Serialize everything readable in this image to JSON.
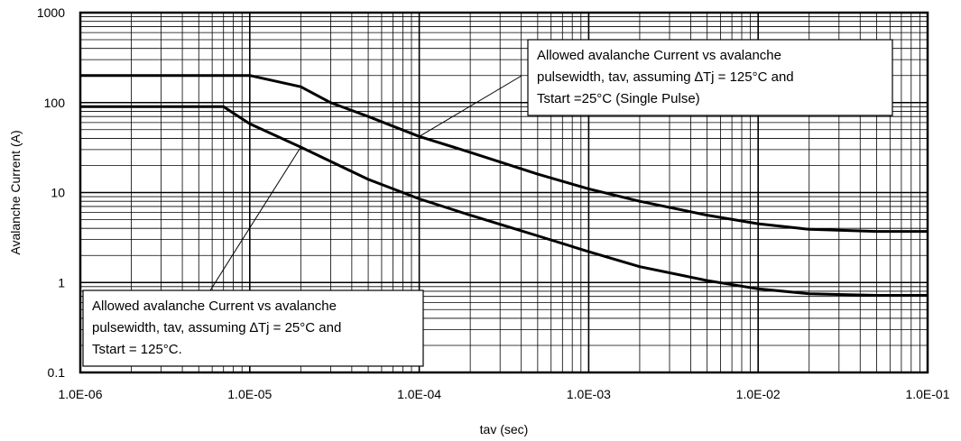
{
  "chart_data": {
    "type": "line",
    "title": "",
    "xlabel": "tav (sec)",
    "ylabel": "Avalanche Current (A)",
    "x_scale": "log",
    "y_scale": "log",
    "xlim": [
      1e-06,
      0.1
    ],
    "ylim": [
      0.1,
      1000
    ],
    "grid": true,
    "x_ticks": [
      "1.0E-06",
      "1.0E-05",
      "1.0E-04",
      "1.0E-03",
      "1.0E-02",
      "1.0E-01"
    ],
    "y_ticks": [
      "0.1",
      "1",
      "10",
      "100",
      "1000"
    ],
    "series": [
      {
        "x": [
          1e-06,
          1e-05,
          2e-05,
          3e-05,
          5e-05,
          0.0001,
          0.0002,
          0.0005,
          0.001,
          0.002,
          0.005,
          0.01,
          0.02,
          0.05,
          0.1
        ],
        "y": [
          200,
          200,
          150,
          100,
          70,
          42,
          28,
          16,
          11,
          8,
          5.6,
          4.5,
          3.9,
          3.7,
          3.7
        ]
      },
      {
        "x": [
          1e-06,
          7e-06,
          1e-05,
          2e-05,
          5e-05,
          0.0001,
          0.0002,
          0.0005,
          0.001,
          0.002,
          0.005,
          0.01,
          0.02,
          0.05,
          0.1
        ],
        "y": [
          90,
          90,
          58,
          32,
          14,
          8.5,
          5.6,
          3.3,
          2.2,
          1.5,
          1.05,
          0.85,
          0.75,
          0.72,
          0.72
        ]
      }
    ],
    "annotations": [
      {
        "lines": [
          "Allowed avalanche Current vs avalanche",
          "pulsewidth, tav, assuming ∆Tj = 125°C and",
          "Tstart =25°C (Single Pulse)"
        ],
        "points_to": {
          "x": 0.0001,
          "y": 42
        }
      },
      {
        "lines": [
          "Allowed avalanche Current vs avalanche",
          "pulsewidth, tav, assuming ∆Tj = 25°C and",
          "Tstart = 125°C."
        ],
        "points_to": {
          "x": 2e-05,
          "y": 32
        }
      }
    ]
  }
}
